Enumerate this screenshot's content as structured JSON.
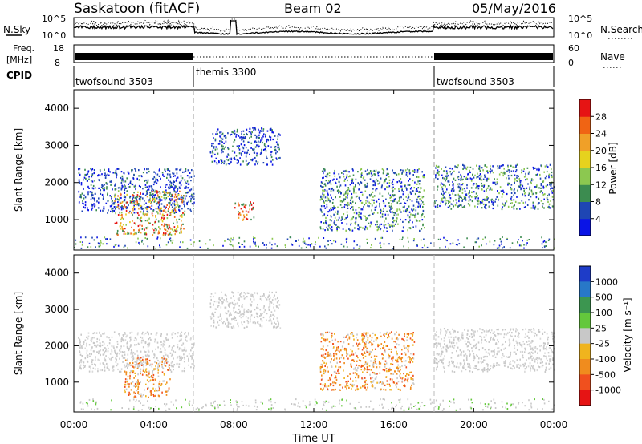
{
  "header": {
    "station": "Saskatoon (fitACF)",
    "beam": "Beam 02",
    "date": "05/May/2016"
  },
  "top_panels": {
    "nsky_label": "N.Sky",
    "nsky_ticks": [
      "10^5",
      "10^0"
    ],
    "nsearch_label": "N.Search",
    "freq_label_1": "Freq.",
    "freq_label_2": "[MHz]",
    "freq_ticks": [
      "18",
      "8"
    ],
    "nave_ticks": [
      "60",
      "0"
    ],
    "nave_label": "Nave",
    "cpid_label": "CPID",
    "cpid_segments": [
      {
        "name": "twofsound 3503",
        "start_h": 0,
        "end_h": 6
      },
      {
        "name": "themis 3300",
        "start_h": 6,
        "end_h": 18
      },
      {
        "name": "twofsound 3503",
        "start_h": 18,
        "end_h": 24
      }
    ]
  },
  "x_axis": {
    "label": "Time UT",
    "ticks": [
      "00:00",
      "04:00",
      "08:00",
      "12:00",
      "16:00",
      "20:00",
      "00:00"
    ]
  },
  "power_panel": {
    "ylabel": "Slant Range [km]",
    "yticks": [
      "1000",
      "2000",
      "3000",
      "4000"
    ],
    "colorbar_label": "Power [dB]",
    "colorbar_ticks": [
      "4",
      "8",
      "12",
      "16",
      "20",
      "24",
      "28"
    ],
    "colorbar_colors": [
      "#0a14e6",
      "#1e46b4",
      "#3c8c50",
      "#8cc850",
      "#e6d21e",
      "#f0a028",
      "#f06414",
      "#e61414"
    ]
  },
  "velocity_panel": {
    "ylabel": "Slant Range [km]",
    "yticks": [
      "1000",
      "2000",
      "3000",
      "4000"
    ],
    "colorbar_label": "Velocity [m s⁻¹]",
    "colorbar_ticks": [
      "1000",
      "500",
      "100",
      "25",
      "-25",
      "-100",
      "-500",
      "-1000"
    ],
    "colorbar_colors": [
      "#1e3cc8",
      "#2878c8",
      "#3c9650",
      "#64c83c",
      "#c8c8c8",
      "#f0b41e",
      "#f08c1e",
      "#f0501e",
      "#e61414"
    ]
  },
  "chart_data": {
    "type": "heatmap",
    "x_range_h": [
      0,
      24
    ],
    "y_range_km": [
      180,
      4500
    ],
    "x_unit": "hours UT",
    "y_unit": "km",
    "scatter_bands_power": [
      {
        "t0": 0.2,
        "t1": 6.0,
        "r0": 1200,
        "r1": 2400,
        "level": "blue"
      },
      {
        "t0": 2.0,
        "t1": 5.5,
        "r0": 600,
        "r1": 1800,
        "level": "green-yellow-red"
      },
      {
        "t0": 6.8,
        "t1": 10.3,
        "r0": 2500,
        "r1": 3500,
        "level": "blue"
      },
      {
        "t0": 8.0,
        "t1": 9.0,
        "r0": 1000,
        "r1": 1500,
        "level": "orange-red"
      },
      {
        "t0": 12.3,
        "t1": 17.5,
        "r0": 700,
        "r1": 2400,
        "level": "blue-green"
      },
      {
        "t0": 18.0,
        "t1": 24.0,
        "r0": 1300,
        "r1": 2500,
        "level": "blue-green"
      }
    ],
    "scatter_bands_velocity": [
      {
        "t0": 0.2,
        "t1": 6.0,
        "r0": 1300,
        "r1": 2400,
        "level": "-25..25 gray"
      },
      {
        "t0": 2.5,
        "t1": 4.8,
        "r0": 600,
        "r1": 1700,
        "level": "-100..-500 orange"
      },
      {
        "t0": 6.8,
        "t1": 10.3,
        "r0": 2500,
        "r1": 3500,
        "level": "-25..25 gray"
      },
      {
        "t0": 12.3,
        "t1": 17.0,
        "r0": 800,
        "r1": 2400,
        "level": "-100..-500 orange"
      },
      {
        "t0": 18.0,
        "t1": 24.0,
        "r0": 1300,
        "r1": 2500,
        "level": "-25..25 gray"
      }
    ]
  }
}
